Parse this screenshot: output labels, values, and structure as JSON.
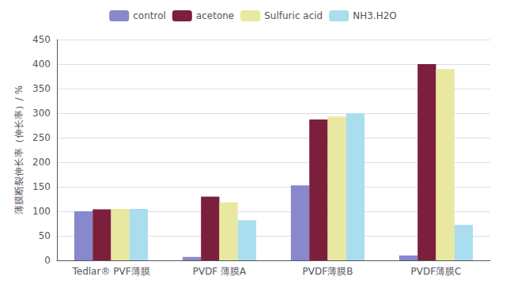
{
  "chart_data": {
    "type": "bar",
    "ylabel": "薄膜断裂伸长率（伸长率）/ %",
    "categories": [
      "Tedlar® PVF薄膜",
      "PVDF 薄膜A",
      "PVDF薄膜B",
      "PVDF薄膜C"
    ],
    "series": [
      {
        "name": "control",
        "color": "#8888cc",
        "values": [
          100,
          7,
          153,
          10
        ]
      },
      {
        "name": "acetone",
        "color": "#7b1f3c",
        "values": [
          104,
          130,
          287,
          400
        ]
      },
      {
        "name": "Sulfuric acid",
        "color": "#e8e8a0",
        "values": [
          105,
          118,
          293,
          390
        ]
      },
      {
        "name": "NH3.H2O",
        "color": "#aaddee",
        "values": [
          105,
          82,
          300,
          72
        ]
      }
    ],
    "ylim": [
      0,
      450
    ],
    "yticks": [
      0,
      50,
      100,
      150,
      200,
      250,
      300,
      350,
      400,
      450
    ],
    "grid": true,
    "legend": "top"
  }
}
